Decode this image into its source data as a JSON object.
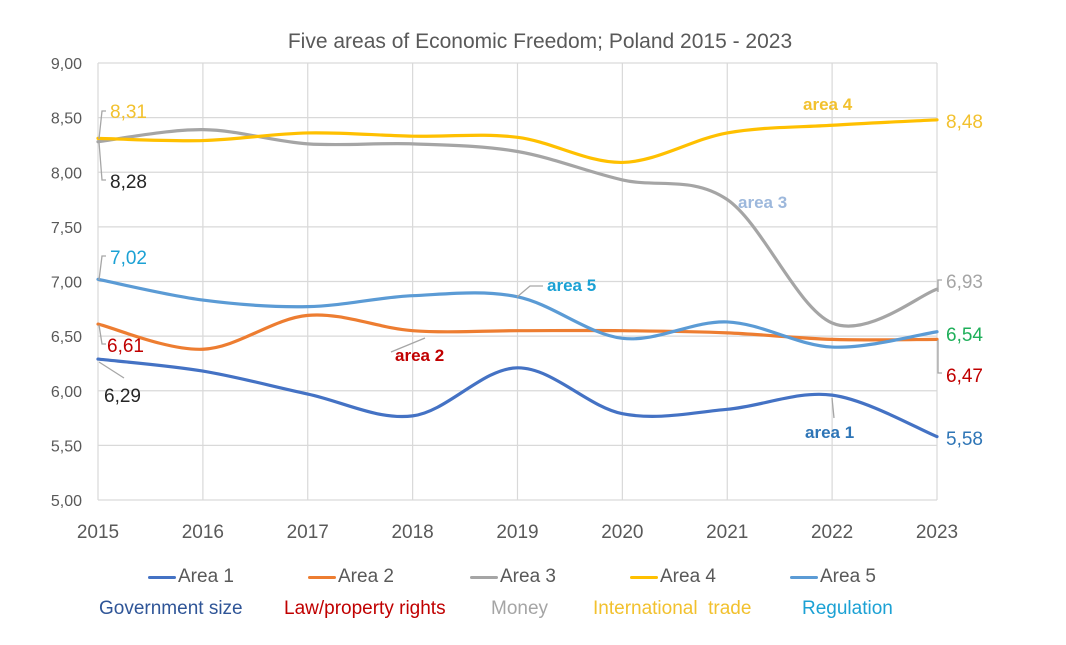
{
  "chart_data": {
    "type": "line",
    "title": "Five areas of Economic Freedom; Poland 2015 - 2023",
    "xlabel": "",
    "ylabel": "",
    "x": [
      "2015",
      "2016",
      "2017",
      "2018",
      "2019",
      "2020",
      "2021",
      "2022",
      "2023"
    ],
    "ylim": [
      5.0,
      9.0
    ],
    "yticks": [
      "5,00",
      "5,50",
      "6,00",
      "6,50",
      "7,00",
      "7,50",
      "8,00",
      "8,50",
      "9,00"
    ],
    "ytick_values": [
      5.0,
      5.5,
      6.0,
      6.5,
      7.0,
      7.5,
      8.0,
      8.5,
      9.0
    ],
    "grid": true,
    "smooth": true,
    "legend_position": "bottom",
    "series": [
      {
        "key": "area1",
        "name": "Area 1",
        "description": "Government size",
        "color": "#4472C4",
        "desc_color": "#2F5597",
        "values": [
          6.29,
          6.18,
          5.97,
          5.77,
          6.21,
          5.79,
          5.83,
          5.96,
          5.58
        ]
      },
      {
        "key": "area2",
        "name": "Area 2",
        "description": "Law/property rights",
        "color": "#ED7D31",
        "desc_color": "#C00000",
        "values": [
          6.61,
          6.38,
          6.69,
          6.55,
          6.55,
          6.55,
          6.53,
          6.47,
          6.47
        ]
      },
      {
        "key": "area3",
        "name": "Area 3",
        "description": "Money",
        "color": "#A5A5A5",
        "desc_color": "#A5A5A5",
        "values": [
          8.28,
          8.39,
          8.26,
          8.26,
          8.19,
          7.93,
          7.75,
          6.62,
          6.93
        ]
      },
      {
        "key": "area4",
        "name": "Area 4",
        "description": "International  trade",
        "color": "#FFC000",
        "desc_color": "#F2C12E",
        "values": [
          8.31,
          8.29,
          8.36,
          8.33,
          8.32,
          8.09,
          8.36,
          8.43,
          8.48
        ]
      },
      {
        "key": "area5",
        "name": "Area 5",
        "description": "Regulation",
        "color": "#5B9BD5",
        "desc_color": "#1BA1D4",
        "values": [
          7.02,
          6.83,
          6.77,
          6.87,
          6.86,
          6.48,
          6.63,
          6.4,
          6.54
        ]
      }
    ],
    "data_labels": {
      "start": [
        {
          "series": "area4",
          "text": "8,31",
          "color": "#F2C12E"
        },
        {
          "series": "area3",
          "text": "8,28",
          "color": "#262626"
        },
        {
          "series": "area5",
          "text": "7,02",
          "color": "#1BA1D4"
        },
        {
          "series": "area2",
          "text": "6,61",
          "color": "#C00000"
        },
        {
          "series": "area1",
          "text": "6,29",
          "color": "#262626"
        }
      ],
      "end": [
        {
          "series": "area4",
          "text": "8,48",
          "color": "#F2C12E"
        },
        {
          "series": "area3",
          "text": "6,93",
          "color": "#A5A5A5"
        },
        {
          "series": "area5",
          "text": "6,54",
          "color": "#1FAF5A"
        },
        {
          "series": "area2",
          "text": "6,47",
          "color": "#C00000"
        },
        {
          "series": "area1",
          "text": "5,58",
          "color": "#2E75B6"
        }
      ]
    },
    "annotations": [
      {
        "text": "area 4",
        "series": "area4",
        "color": "#F2C12E"
      },
      {
        "text": "area 3",
        "series": "area3",
        "color": "#9DB8DC"
      },
      {
        "text": "area 5",
        "series": "area5",
        "color": "#1BA1D4"
      },
      {
        "text": "area 2",
        "series": "area2",
        "color": "#C00000"
      },
      {
        "text": "area 1",
        "series": "area1",
        "color": "#2E75B6"
      }
    ]
  }
}
